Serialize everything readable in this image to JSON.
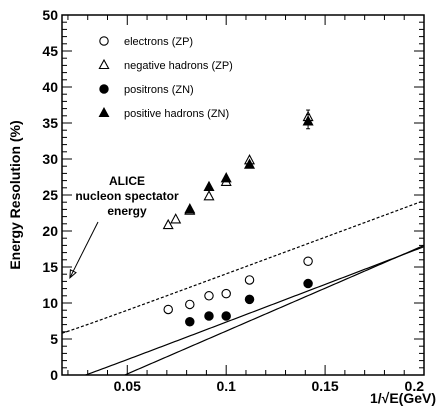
{
  "chart_data": {
    "type": "scatter",
    "xlabel": "1/√E(GeV)",
    "ylabel": "Energy Resolution (%)",
    "xlim": [
      0.017,
      0.2
    ],
    "ylim": [
      0,
      50
    ],
    "xticks": [
      0.05,
      0.1,
      0.15,
      0.2
    ],
    "xtick_labels": [
      "0.05",
      "0.1",
      "0.15",
      "0.2"
    ],
    "yticks": [
      0,
      5,
      10,
      15,
      20,
      25,
      30,
      35,
      40,
      45,
      50
    ],
    "ytick_labels": [
      "0",
      "5",
      "10",
      "15",
      "20",
      "25",
      "30",
      "35",
      "40",
      "45",
      "50"
    ],
    "grid": false,
    "legend_position": "top-left",
    "series": [
      {
        "name": "electrons (ZP)",
        "marker": "open-circle",
        "x": [
          0.0707,
          0.0816,
          0.0913,
          0.1,
          0.1118,
          0.1414
        ],
        "y": [
          9.1,
          9.8,
          11.0,
          11.3,
          13.2,
          15.8
        ]
      },
      {
        "name": "negative hadrons (ZP)",
        "marker": "open-triangle",
        "x": [
          0.0707,
          0.0745,
          0.0816,
          0.0913,
          0.1,
          0.1118,
          0.1414
        ],
        "y": [
          20.8,
          21.6,
          22.8,
          24.8,
          26.8,
          29.8,
          35.8
        ],
        "yerr": [
          0,
          0,
          0,
          0,
          0,
          0,
          1.0
        ]
      },
      {
        "name": "positrons (ZN)",
        "marker": "filled-circle",
        "x": [
          0.0816,
          0.0913,
          0.1,
          0.1118,
          0.1414
        ],
        "y": [
          7.4,
          8.2,
          8.2,
          10.5,
          12.7
        ]
      },
      {
        "name": "positive hadrons (ZN)",
        "marker": "filled-triangle",
        "x": [
          0.0816,
          0.0913,
          0.1,
          0.1118,
          0.1414
        ],
        "y": [
          23.0,
          26.1,
          27.3,
          29.2,
          35.2
        ],
        "yerr": [
          0,
          0,
          0,
          0,
          1.0
        ]
      }
    ],
    "fits": [
      {
        "style": "solid",
        "a": -3.2,
        "b": 1.0,
        "c": 105.0,
        "x_range": [
          0.017,
          0.2
        ]
      },
      {
        "style": "dashed",
        "a": 3.8,
        "b": 1.0,
        "c": 102.0,
        "x_range": [
          0.017,
          0.2
        ]
      },
      {
        "style": "dashed",
        "a": 3.3,
        "b": 125.0,
        "c": 30.0,
        "x_range": [
          0.017,
          0.2
        ]
      },
      {
        "style": "solid",
        "a": -5.8,
        "b": 0.0,
        "c": 119.0,
        "x_range": [
          0.017,
          0.2
        ]
      }
    ],
    "annotation": {
      "lines": [
        "ALICE",
        "nucleon spectator",
        "energy"
      ],
      "arrow_to": {
        "x": 0.021,
        "y": 13.5
      }
    }
  }
}
